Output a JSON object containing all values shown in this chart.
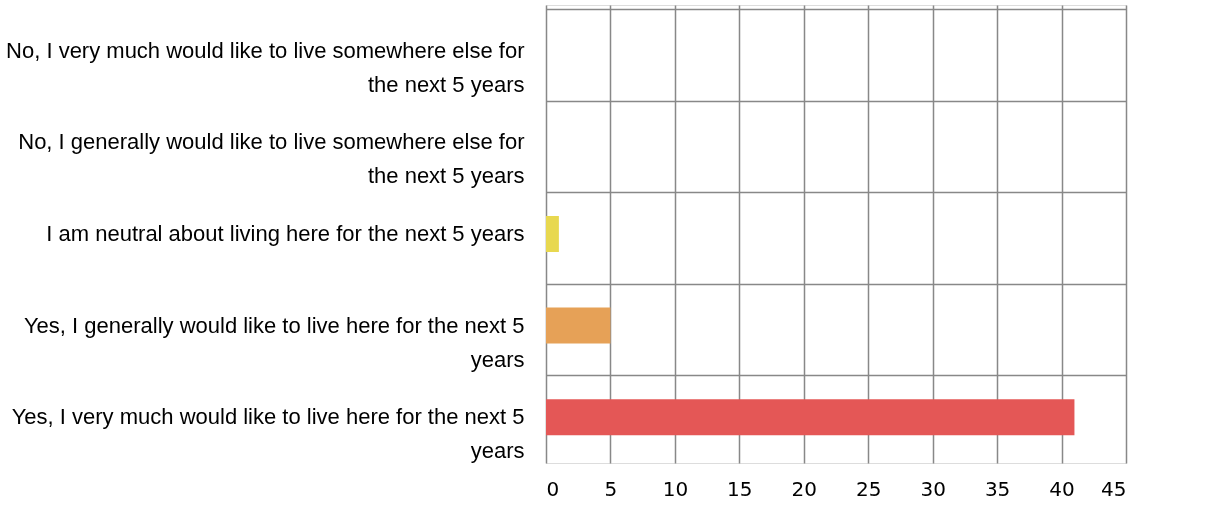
{
  "chart_data": {
    "type": "bar",
    "orientation": "horizontal",
    "categories": [
      "No, I very much would like to live somewhere else for the next 5 years",
      "No, I generally would like to live somewhere else for the next 5  years",
      "I am neutral about living here for the next 5 years",
      "Yes, I generally would like to live here for the next 5 years",
      "Yes, I very much would like to live here for the next 5 years"
    ],
    "values": [
      0,
      0,
      1,
      5,
      41
    ],
    "colors": [
      "#6fa8dc",
      "#93c47d",
      "#e8d84f",
      "#e6a157",
      "#e45756"
    ],
    "xlim": [
      0,
      45
    ],
    "xticks": [
      0,
      5,
      10,
      15,
      20,
      25,
      30,
      35,
      40,
      45
    ],
    "grid": true
  }
}
